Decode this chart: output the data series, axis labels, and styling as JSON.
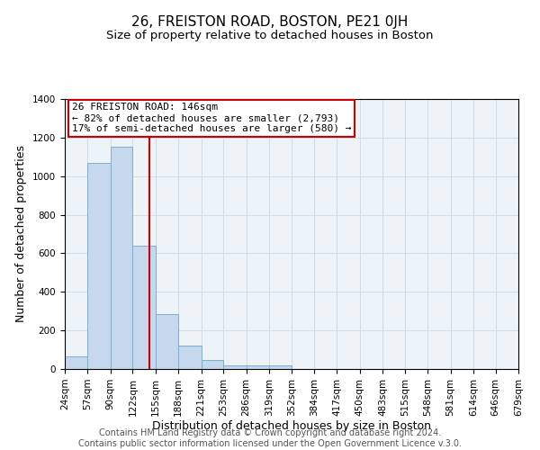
{
  "title": "26, FREISTON ROAD, BOSTON, PE21 0JH",
  "subtitle": "Size of property relative to detached houses in Boston",
  "xlabel": "Distribution of detached houses by size in Boston",
  "ylabel": "Number of detached properties",
  "bar_color": "#c5d8ed",
  "bar_edge_color": "#7aaed0",
  "grid_color": "#d0dce8",
  "background_color": "#eef3f8",
  "vline_x": 146,
  "vline_color": "#cc0000",
  "annotation_box_color": "#cc0000",
  "annotation_lines": [
    "26 FREISTON ROAD: 146sqm",
    "← 82% of detached houses are smaller (2,793)",
    "17% of semi-detached houses are larger (580) →"
  ],
  "bin_edges": [
    24,
    57,
    90,
    122,
    155,
    188,
    221,
    253,
    286,
    319,
    352,
    384,
    417,
    450,
    483,
    515,
    548,
    581,
    614,
    646,
    679
  ],
  "bin_counts": [
    65,
    1070,
    1155,
    638,
    285,
    120,
    48,
    20,
    20,
    18,
    0,
    0,
    0,
    0,
    0,
    0,
    0,
    0,
    0,
    0
  ],
  "ylim": [
    0,
    1400
  ],
  "yticks": [
    0,
    200,
    400,
    600,
    800,
    1000,
    1200,
    1400
  ],
  "footer_lines": [
    "Contains HM Land Registry data © Crown copyright and database right 2024.",
    "Contains public sector information licensed under the Open Government Licence v.3.0."
  ],
  "annotation_fontsize": 8.0,
  "title_fontsize": 11,
  "subtitle_fontsize": 9.5,
  "footer_fontsize": 7,
  "xlabel_fontsize": 9,
  "ylabel_fontsize": 9,
  "tick_fontsize": 7.5
}
